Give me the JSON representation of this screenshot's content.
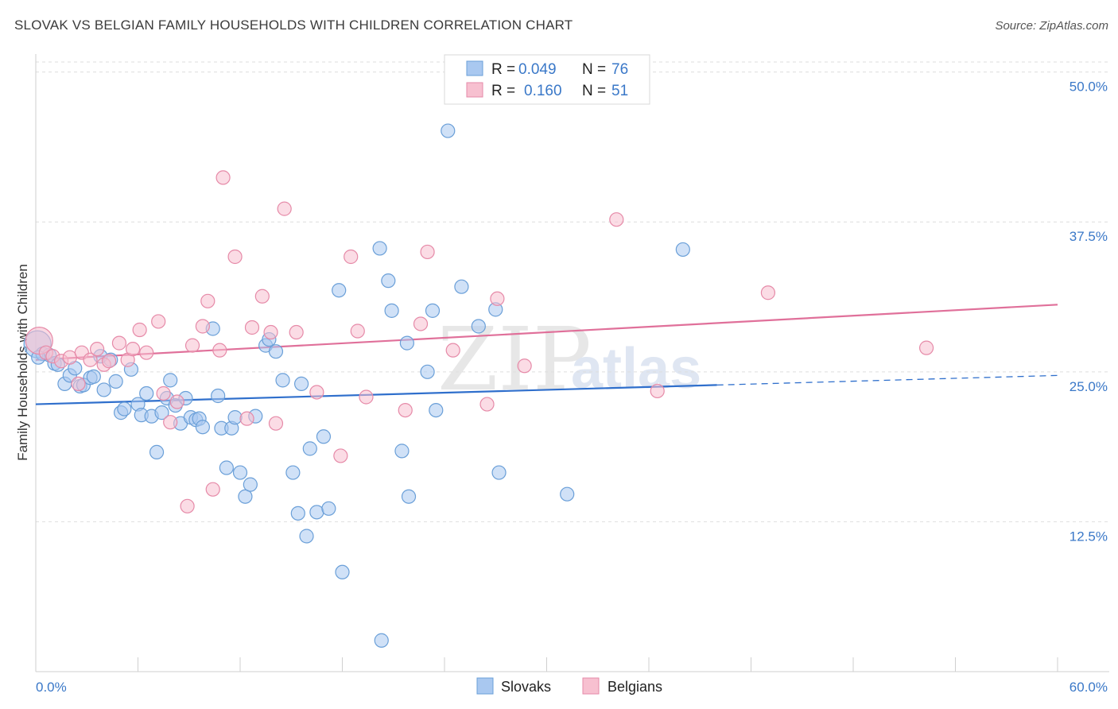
{
  "title": "SLOVAK VS BELGIAN FAMILY HOUSEHOLDS WITH CHILDREN CORRELATION CHART",
  "source": "Source: ZipAtlas.com",
  "watermark": {
    "zip": "ZIP",
    "atlas": "atlas"
  },
  "legend": {
    "r_label": "R =",
    "n_label": "N =",
    "rows": [
      {
        "name": "Slovaks",
        "r": "0.049",
        "n": "76",
        "color": "#a9c8f0",
        "stroke": "#6a9fd8"
      },
      {
        "name": "Belgians",
        "r": "0.160",
        "n": "51",
        "color": "#f7c0d0",
        "stroke": "#e68aa8"
      }
    ]
  },
  "chart_data": {
    "type": "scatter",
    "title": "SLOVAK VS BELGIAN FAMILY HOUSEHOLDS WITH CHILDREN CORRELATION CHART",
    "xlabel": "",
    "ylabel": "Family Households with Children",
    "xlim": [
      0,
      60
    ],
    "ylim": [
      0,
      51.5
    ],
    "x_tick_labels": [
      "0.0%",
      "60.0%"
    ],
    "y_ticks": [
      12.5,
      25.0,
      37.5,
      50.0
    ],
    "y_tick_labels": [
      "12.5%",
      "25.0%",
      "37.5%",
      "50.0%"
    ],
    "grid": true,
    "series": [
      {
        "name": "Slovaks",
        "color": "#6a9fd8",
        "fill": "#a9c8f0",
        "trend": {
          "x0": 0,
          "y0": 22.3,
          "x1": 40,
          "y1": 23.9,
          "dash_to_x": 60,
          "dash_to_y": 24.7
        },
        "points": [
          [
            0.1,
            27.3
          ],
          [
            0.4,
            26.5
          ],
          [
            0.8,
            26.4
          ],
          [
            1.1,
            25.7
          ],
          [
            1.3,
            25.6
          ],
          [
            1.7,
            24.0
          ],
          [
            2.0,
            24.7
          ],
          [
            2.3,
            25.3
          ],
          [
            2.6,
            23.8
          ],
          [
            2.8,
            23.9
          ],
          [
            3.2,
            24.5
          ],
          [
            3.4,
            24.6
          ],
          [
            3.8,
            26.3
          ],
          [
            4.0,
            23.5
          ],
          [
            4.4,
            26.0
          ],
          [
            4.7,
            24.2
          ],
          [
            5.0,
            21.6
          ],
          [
            5.2,
            21.9
          ],
          [
            5.6,
            25.2
          ],
          [
            6.0,
            22.3
          ],
          [
            6.2,
            21.4
          ],
          [
            6.5,
            23.2
          ],
          [
            6.8,
            21.3
          ],
          [
            7.1,
            18.3
          ],
          [
            7.4,
            21.6
          ],
          [
            7.7,
            22.8
          ],
          [
            7.9,
            24.3
          ],
          [
            8.2,
            22.2
          ],
          [
            8.5,
            20.7
          ],
          [
            8.8,
            22.8
          ],
          [
            9.1,
            21.2
          ],
          [
            9.4,
            21.0
          ],
          [
            9.6,
            21.1
          ],
          [
            9.8,
            20.4
          ],
          [
            10.4,
            28.6
          ],
          [
            10.7,
            23.0
          ],
          [
            10.9,
            20.3
          ],
          [
            11.2,
            17.0
          ],
          [
            11.5,
            20.3
          ],
          [
            11.7,
            21.2
          ],
          [
            12.0,
            16.6
          ],
          [
            12.3,
            14.6
          ],
          [
            12.6,
            15.6
          ],
          [
            12.9,
            21.3
          ],
          [
            13.5,
            27.2
          ],
          [
            13.7,
            27.7
          ],
          [
            14.1,
            26.7
          ],
          [
            14.5,
            24.3
          ],
          [
            15.1,
            16.6
          ],
          [
            15.4,
            13.2
          ],
          [
            15.6,
            24.0
          ],
          [
            15.9,
            11.3
          ],
          [
            16.1,
            18.6
          ],
          [
            16.5,
            13.3
          ],
          [
            16.9,
            19.6
          ],
          [
            17.2,
            13.6
          ],
          [
            17.8,
            31.8
          ],
          [
            18.0,
            8.3
          ],
          [
            20.2,
            35.3
          ],
          [
            20.3,
            2.6
          ],
          [
            20.7,
            32.6
          ],
          [
            20.9,
            30.1
          ],
          [
            21.5,
            18.4
          ],
          [
            21.8,
            27.4
          ],
          [
            21.9,
            14.6
          ],
          [
            23.0,
            25.0
          ],
          [
            23.3,
            30.1
          ],
          [
            23.5,
            21.8
          ],
          [
            24.2,
            45.1
          ],
          [
            25.0,
            32.1
          ],
          [
            26.0,
            28.8
          ],
          [
            27.0,
            30.2
          ],
          [
            27.2,
            16.6
          ],
          [
            31.2,
            14.8
          ],
          [
            38.0,
            35.2
          ],
          [
            0.15,
            26.2
          ]
        ]
      },
      {
        "name": "Belgians",
        "color": "#e68aa8",
        "fill": "#f7c0d0",
        "trend": {
          "x0": 0,
          "y0": 26.0,
          "x1": 60,
          "y1": 30.6
        },
        "points": [
          [
            0.2,
            27.6
          ],
          [
            0.6,
            26.6
          ],
          [
            1.0,
            26.3
          ],
          [
            1.5,
            25.9
          ],
          [
            2.0,
            26.2
          ],
          [
            2.5,
            24.0
          ],
          [
            2.7,
            26.6
          ],
          [
            3.2,
            26.0
          ],
          [
            3.6,
            26.9
          ],
          [
            4.0,
            25.6
          ],
          [
            4.3,
            25.9
          ],
          [
            4.9,
            27.4
          ],
          [
            5.4,
            26.0
          ],
          [
            5.7,
            26.9
          ],
          [
            6.1,
            28.5
          ],
          [
            6.5,
            26.6
          ],
          [
            7.2,
            29.2
          ],
          [
            7.5,
            23.2
          ],
          [
            7.9,
            20.8
          ],
          [
            8.3,
            22.5
          ],
          [
            8.9,
            13.8
          ],
          [
            9.2,
            27.2
          ],
          [
            9.8,
            28.8
          ],
          [
            10.1,
            30.9
          ],
          [
            10.4,
            15.2
          ],
          [
            10.8,
            26.8
          ],
          [
            11.0,
            41.2
          ],
          [
            11.7,
            34.6
          ],
          [
            12.4,
            21.1
          ],
          [
            12.7,
            28.7
          ],
          [
            13.3,
            31.3
          ],
          [
            13.8,
            28.3
          ],
          [
            14.1,
            20.7
          ],
          [
            14.6,
            38.6
          ],
          [
            15.3,
            28.3
          ],
          [
            16.5,
            23.3
          ],
          [
            17.9,
            18.0
          ],
          [
            18.5,
            34.6
          ],
          [
            18.9,
            28.4
          ],
          [
            19.4,
            22.9
          ],
          [
            21.7,
            21.8
          ],
          [
            22.6,
            29.0
          ],
          [
            23.0,
            35.0
          ],
          [
            24.5,
            26.8
          ],
          [
            26.5,
            22.3
          ],
          [
            27.1,
            31.1
          ],
          [
            28.7,
            25.5
          ],
          [
            34.1,
            37.7
          ],
          [
            36.5,
            23.4
          ],
          [
            43.0,
            31.6
          ],
          [
            52.3,
            27.0
          ]
        ]
      }
    ]
  }
}
